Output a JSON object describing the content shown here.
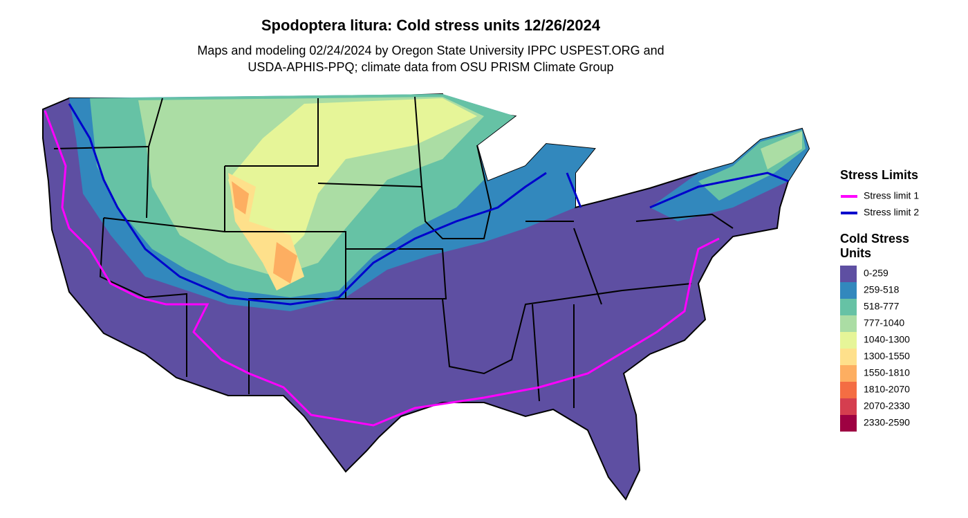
{
  "title": "Spodoptera litura: Cold stress units 12/26/2024",
  "subtitle": [
    "Maps and modeling 02/24/2024 by Oregon State University IPPC USPEST.ORG and",
    "USDA-APHIS-PPQ; climate data from OSU PRISM Climate Group"
  ],
  "stress_limits": {
    "title": "Stress Limits",
    "items": [
      {
        "label": "Stress limit 1",
        "color": "#ff00ff"
      },
      {
        "label": "Stress limit 2",
        "color": "#0000cc"
      }
    ]
  },
  "cold_stress_units": {
    "title": [
      "Cold Stress",
      "Units"
    ],
    "items": [
      {
        "label": "0-259",
        "color": "#5e4fa2"
      },
      {
        "label": "259-518",
        "color": "#3288bd"
      },
      {
        "label": "518-777",
        "color": "#66c2a5"
      },
      {
        "label": "777-1040",
        "color": "#abdda4"
      },
      {
        "label": "1040-1300",
        "color": "#e6f598"
      },
      {
        "label": "1300-1550",
        "color": "#fee08b"
      },
      {
        "label": "1550-1810",
        "color": "#fdae61"
      },
      {
        "label": "1810-2070",
        "color": "#f46d43"
      },
      {
        "label": "2070-2330",
        "color": "#d53e4f"
      },
      {
        "label": "2330-2590",
        "color": "#9e0142"
      }
    ]
  }
}
